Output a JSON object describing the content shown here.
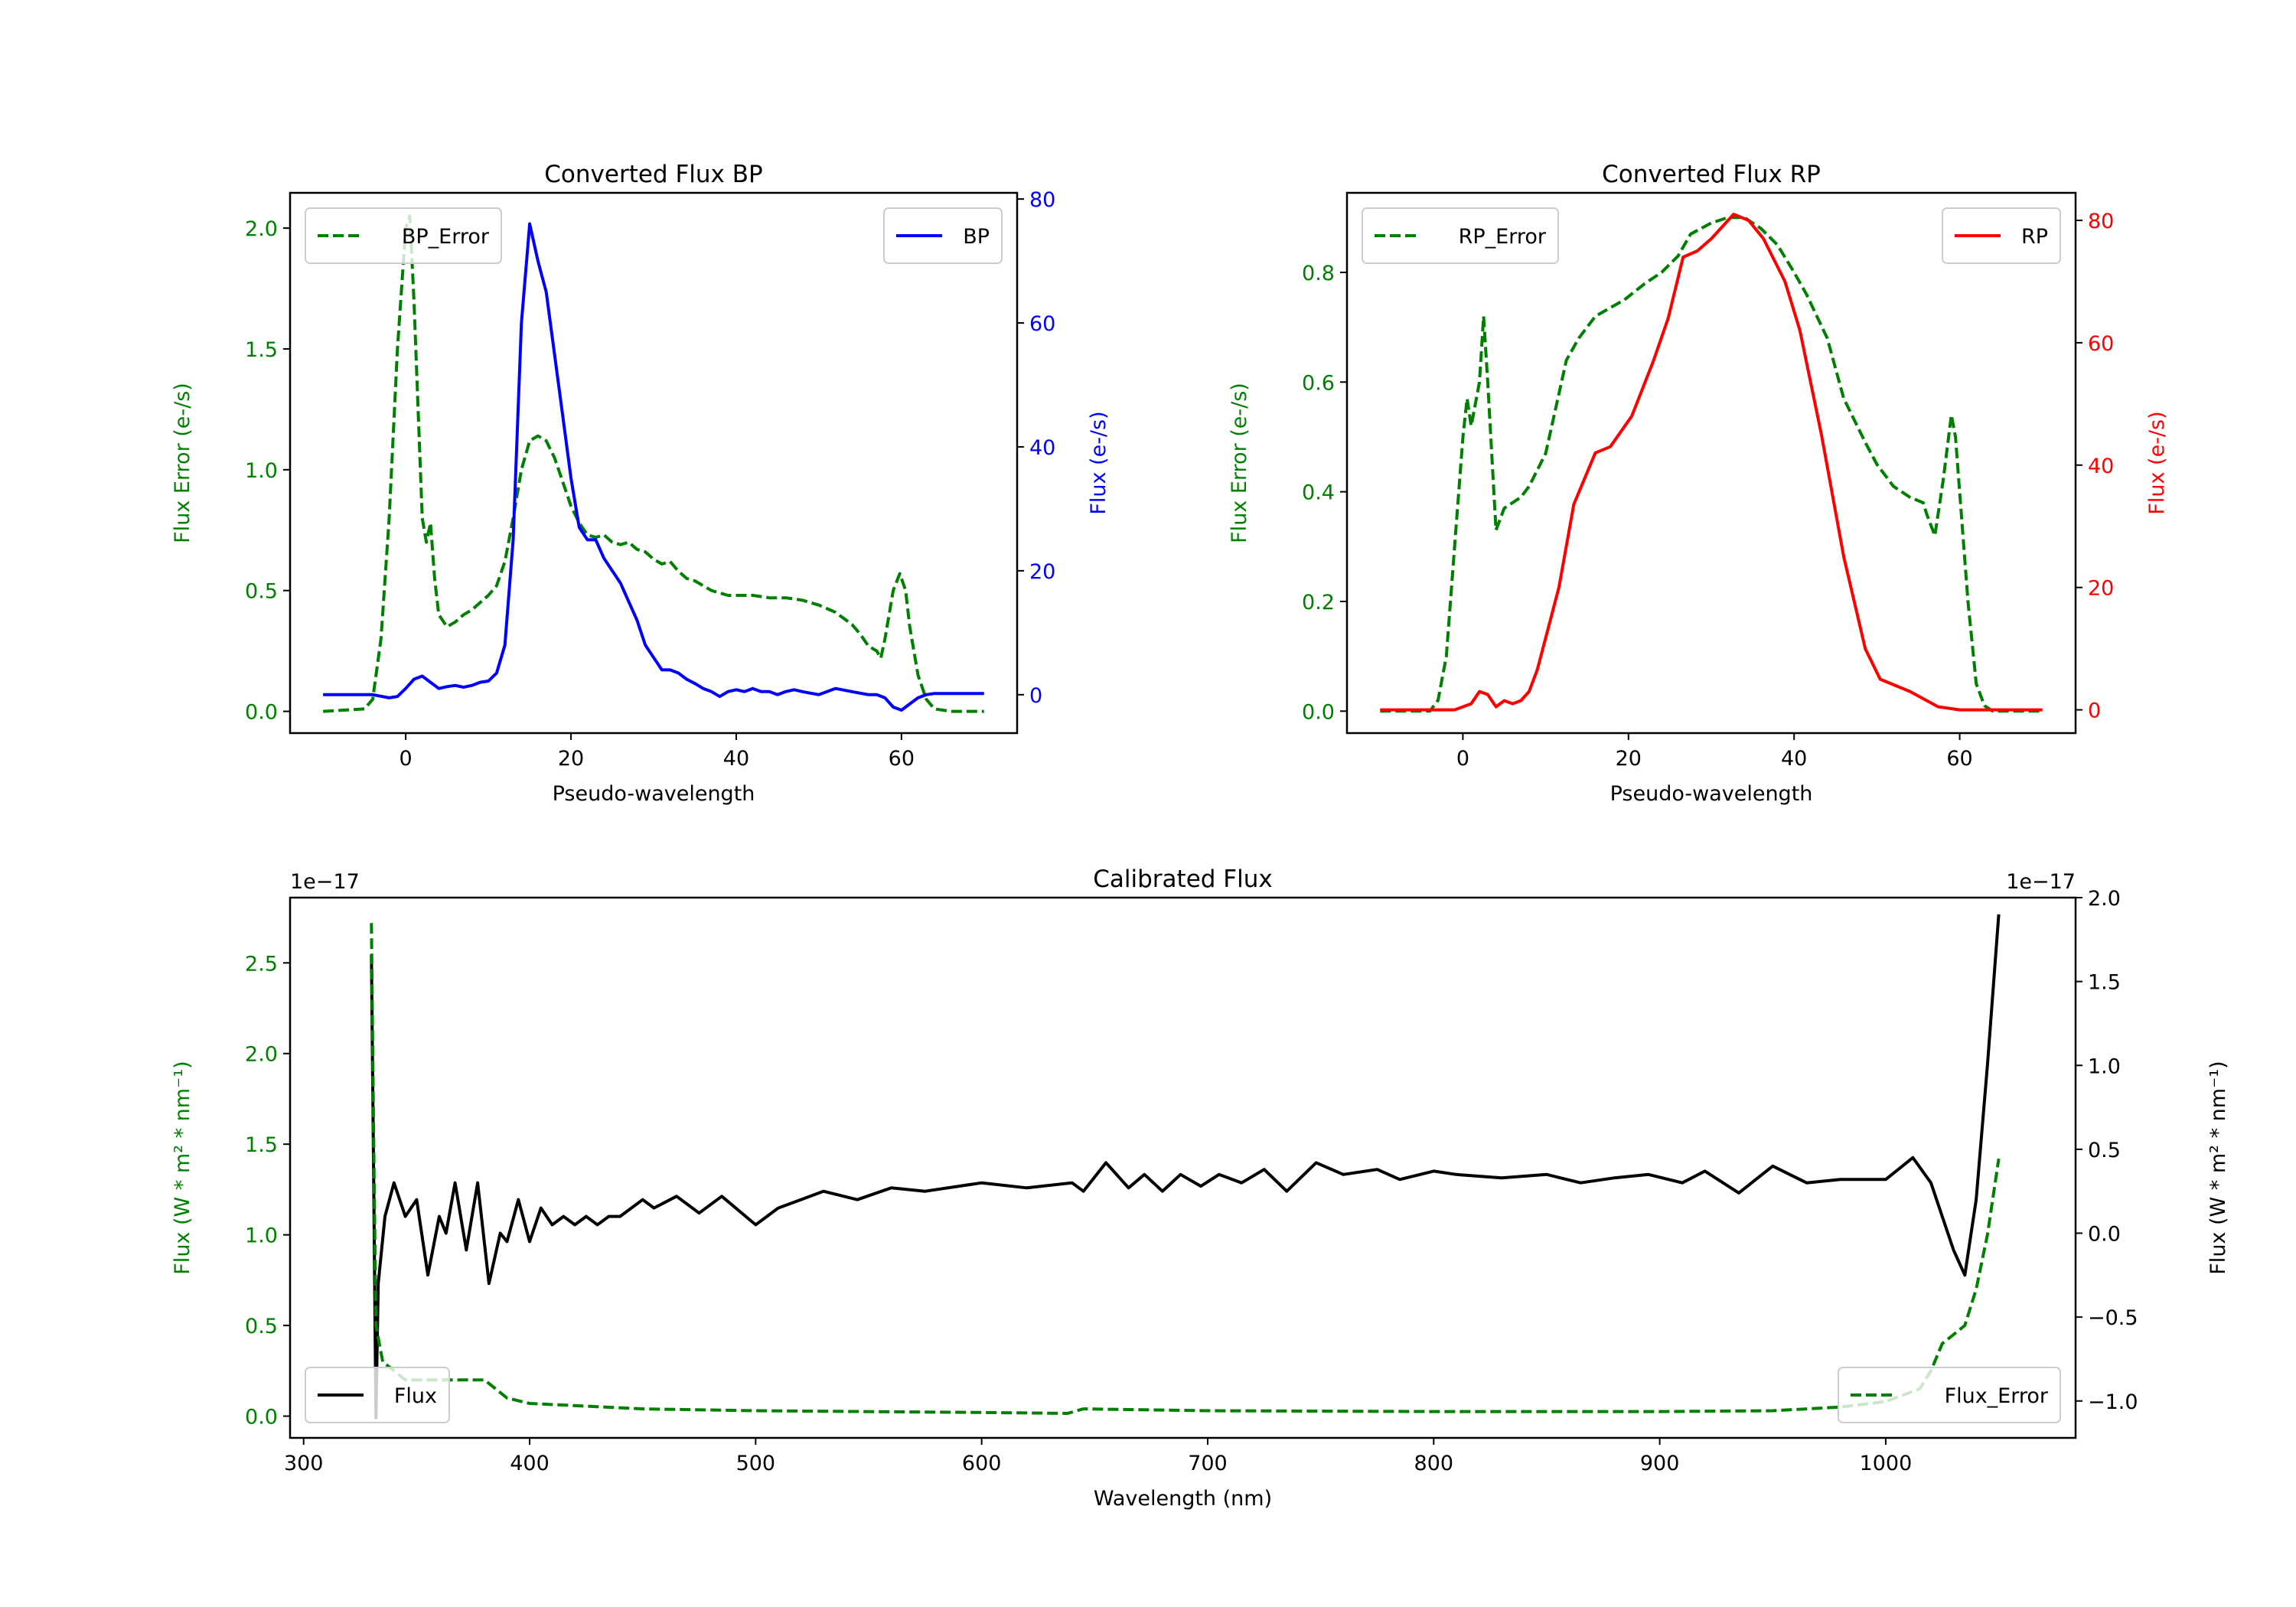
{
  "chart_data": [
    {
      "type": "line",
      "title": "Converted Flux BP",
      "xlabel": "Pseudo-wavelength",
      "ylabel_left": "Flux Error (e-/s)",
      "ylabel_right": "Flux (e-/s)",
      "xlim": [
        -14,
        74
      ],
      "ylim_left": [
        -0.09,
        2.146
      ],
      "ylim_right": [
        -6.2,
        81
      ],
      "xticks": [
        0,
        20,
        40,
        60
      ],
      "yticks_left": [
        0.0,
        0.5,
        1.0,
        1.5,
        2.0
      ],
      "yticks_right": [
        0,
        20,
        40,
        60,
        80
      ],
      "left_color": "#008000",
      "right_color": "#0000ff",
      "series": [
        {
          "name": "BP_Error",
          "axis": "left",
          "style": "dashed",
          "color": "#008000",
          "legend": "upper-left",
          "x": [
            -10,
            -5,
            -4,
            -3,
            -2,
            -1,
            0,
            0.5,
            1,
            2,
            2.5,
            3,
            3.5,
            4,
            5,
            6,
            7,
            8,
            9,
            10,
            11,
            12,
            13,
            14,
            15,
            16,
            17,
            18,
            19,
            20,
            21,
            22,
            23,
            24,
            25,
            26,
            27,
            28,
            29,
            30,
            31,
            32,
            33,
            34,
            35,
            36,
            37,
            38,
            39,
            40,
            42,
            44,
            46,
            48,
            50,
            52,
            54,
            55,
            56,
            57,
            57.5,
            58,
            59,
            59.8,
            60.5,
            61,
            62,
            63,
            64,
            66,
            70
          ],
          "y": [
            0,
            0.01,
            0.05,
            0.3,
            0.8,
            1.5,
            2.0,
            2.05,
            1.7,
            0.8,
            0.7,
            0.78,
            0.55,
            0.4,
            0.35,
            0.37,
            0.4,
            0.42,
            0.45,
            0.48,
            0.52,
            0.62,
            0.8,
            1.0,
            1.12,
            1.14,
            1.12,
            1.05,
            0.95,
            0.85,
            0.78,
            0.73,
            0.72,
            0.73,
            0.7,
            0.69,
            0.7,
            0.67,
            0.66,
            0.63,
            0.61,
            0.62,
            0.58,
            0.55,
            0.54,
            0.52,
            0.5,
            0.49,
            0.48,
            0.48,
            0.48,
            0.47,
            0.47,
            0.46,
            0.44,
            0.41,
            0.36,
            0.32,
            0.27,
            0.25,
            0.22,
            0.3,
            0.5,
            0.57,
            0.5,
            0.35,
            0.15,
            0.05,
            0.01,
            0,
            0
          ]
        },
        {
          "name": "BP",
          "axis": "right",
          "style": "solid",
          "color": "#0000ff",
          "legend": "upper-right",
          "x": [
            -10,
            -4,
            -2,
            -1,
            0,
            1,
            2,
            3,
            4,
            5,
            6,
            7,
            8,
            9,
            10,
            11,
            12,
            13,
            14,
            15,
            16,
            17,
            18,
            19,
            20,
            21,
            22,
            23,
            24,
            25,
            26,
            27,
            28,
            29,
            30,
            31,
            32,
            33,
            34,
            35,
            36,
            37,
            38,
            39,
            40,
            41,
            42,
            43,
            44,
            45,
            46,
            47,
            48,
            50,
            51,
            52,
            54,
            56,
            57,
            58,
            59,
            60,
            61,
            62,
            63,
            64,
            66,
            70
          ],
          "y": [
            0,
            0,
            -0.5,
            -0.3,
            1,
            2.5,
            3,
            2,
            1,
            1.3,
            1.5,
            1.2,
            1.5,
            2,
            2.2,
            3.5,
            8,
            25,
            60,
            76,
            70,
            65,
            55,
            45,
            35,
            27,
            25,
            25,
            22,
            20,
            18,
            15,
            12,
            8,
            6,
            4,
            4,
            3.5,
            2.5,
            1.8,
            1,
            0.5,
            -0.3,
            0.5,
            0.8,
            0.5,
            1,
            0.5,
            0.5,
            0,
            0.5,
            0.8,
            0.5,
            0,
            0.5,
            1,
            0.5,
            0,
            0,
            -0.5,
            -2,
            -2.5,
            -1.5,
            -0.5,
            0,
            0.2,
            0.2,
            0.2
          ]
        }
      ]
    },
    {
      "type": "line",
      "title": "Converted Flux RP",
      "xlabel": "Pseudo-wavelength",
      "ylabel_left": "Flux Error (e-/s)",
      "ylabel_right": "Flux (e-/s)",
      "xlim": [
        -14,
        74
      ],
      "ylim_left": [
        -0.04,
        0.945
      ],
      "ylim_right": [
        -3.8,
        84.5
      ],
      "xticks": [
        0,
        20,
        40,
        60
      ],
      "yticks_left": [
        0.0,
        0.2,
        0.4,
        0.6,
        0.8
      ],
      "yticks_right": [
        0,
        20,
        40,
        60,
        80
      ],
      "left_color": "#008000",
      "right_color": "#ff0000",
      "series": [
        {
          "name": "RP_Error",
          "axis": "left",
          "style": "dashed",
          "color": "#008000",
          "legend": "upper-left",
          "x": [
            -10,
            -4,
            -3,
            -2,
            -1,
            0,
            0.5,
            1,
            2,
            2.5,
            3,
            4,
            5,
            7,
            8,
            10,
            12.5,
            14,
            16,
            19.5,
            22,
            24,
            26,
            27.5,
            30,
            32,
            34,
            36,
            38,
            40,
            41.5,
            44,
            46,
            48.6,
            50,
            52,
            54,
            55.6,
            56,
            57,
            58,
            59,
            59.5,
            60,
            61,
            62,
            63,
            64,
            70
          ],
          "y": [
            0,
            0,
            0.02,
            0.1,
            0.3,
            0.5,
            0.57,
            0.52,
            0.6,
            0.72,
            0.6,
            0.33,
            0.37,
            0.39,
            0.41,
            0.47,
            0.64,
            0.68,
            0.72,
            0.75,
            0.78,
            0.8,
            0.83,
            0.87,
            0.89,
            0.9,
            0.9,
            0.88,
            0.85,
            0.8,
            0.76,
            0.68,
            0.57,
            0.49,
            0.45,
            0.41,
            0.39,
            0.38,
            0.36,
            0.32,
            0.42,
            0.54,
            0.5,
            0.4,
            0.2,
            0.05,
            0.01,
            0,
            0
          ]
        },
        {
          "name": "RP",
          "axis": "right",
          "style": "solid",
          "color": "#ff0000",
          "legend": "upper-right",
          "x": [
            -10,
            -1,
            1,
            2,
            3,
            4,
            5,
            6,
            7,
            8,
            9,
            11.6,
            13.4,
            16,
            17.8,
            20.4,
            23,
            24.8,
            26.6,
            28.3,
            30,
            32.7,
            34.5,
            36.3,
            38.9,
            40.7,
            43.3,
            46,
            48.6,
            50.4,
            54,
            57.4,
            60,
            70
          ],
          "y": [
            0,
            0,
            1,
            3,
            2.5,
            0.5,
            1.5,
            1,
            1.5,
            3,
            6.6,
            20,
            33.6,
            42,
            43,
            48,
            57,
            64,
            74,
            75,
            77,
            81,
            80,
            77,
            70,
            62,
            45,
            25,
            10,
            5,
            3,
            0.5,
            0,
            0
          ]
        }
      ]
    },
    {
      "type": "line",
      "title": "Calibrated Flux",
      "xlabel": "Wavelength (nm)",
      "ylabel_left": "Flux (W * m$^2$ * nm$^{-1}$)",
      "ylabel_left_display": "Flux (W * m² * nm⁻¹)",
      "ylabel_right_display": "Flux (W * m² * nm⁻¹)",
      "offset_left": "1e−17",
      "offset_right": "1e−17",
      "xlim": [
        294,
        1084
      ],
      "ylim_left": [
        -0.12,
        2.86
      ],
      "ylim_right": [
        -1.22,
        2.0
      ],
      "xticks": [
        300,
        400,
        500,
        600,
        700,
        800,
        900,
        1000
      ],
      "yticks_left": [
        0.0,
        0.5,
        1.0,
        1.5,
        2.0,
        2.5
      ],
      "yticks_right": [
        -1.0,
        -0.5,
        0.0,
        0.5,
        1.0,
        1.5,
        2.0
      ],
      "left_color": "#008000",
      "right_color": "#000000",
      "series": [
        {
          "name": "Flux",
          "axis": "right",
          "style": "solid",
          "color": "#000000",
          "legend": "lower-left",
          "x": [
            330,
            331,
            332,
            333,
            336,
            340,
            345,
            350,
            355,
            360,
            363,
            367,
            372,
            377,
            382,
            387,
            390,
            395,
            400,
            405,
            410,
            415,
            420,
            425,
            430,
            435,
            440,
            450,
            455,
            465,
            475,
            485,
            500,
            510,
            520,
            530,
            545,
            560,
            575,
            600,
            620,
            640,
            645,
            655,
            665,
            672,
            680,
            688,
            697,
            705,
            715,
            725,
            735,
            748,
            760,
            775,
            785,
            800,
            810,
            830,
            850,
            865,
            880,
            895,
            910,
            920,
            935,
            950,
            965,
            980,
            1000,
            1012,
            1020,
            1030,
            1035,
            1040,
            1045,
            1050
          ],
          "y": [
            1.66,
            0.3,
            -1.1,
            -0.3,
            0.1,
            0.3,
            0.1,
            0.2,
            -0.25,
            0.1,
            0.0,
            0.3,
            -0.1,
            0.3,
            -0.3,
            0.0,
            -0.05,
            0.2,
            -0.05,
            0.15,
            0.05,
            0.1,
            0.05,
            0.1,
            0.05,
            0.1,
            0.1,
            0.2,
            0.15,
            0.22,
            0.12,
            0.22,
            0.05,
            0.15,
            0.2,
            0.25,
            0.2,
            0.27,
            0.25,
            0.3,
            0.27,
            0.3,
            0.25,
            0.42,
            0.27,
            0.35,
            0.25,
            0.35,
            0.28,
            0.35,
            0.3,
            0.38,
            0.25,
            0.42,
            0.35,
            0.38,
            0.32,
            0.37,
            0.35,
            0.33,
            0.35,
            0.3,
            0.33,
            0.35,
            0.3,
            0.37,
            0.24,
            0.4,
            0.3,
            0.32,
            0.32,
            0.45,
            0.3,
            -0.1,
            -0.25,
            0.2,
            1.0,
            1.9
          ]
        },
        {
          "name": "Flux_Error",
          "axis": "left",
          "style": "dashed",
          "color": "#008000",
          "legend": "lower-right",
          "x": [
            330,
            331,
            332,
            335,
            345,
            380,
            390,
            400,
            450,
            500,
            600,
            638,
            645,
            700,
            800,
            900,
            950,
            980,
            1000,
            1015,
            1020,
            1025,
            1035,
            1040,
            1045,
            1050
          ],
          "y": [
            2.72,
            1.5,
            0.5,
            0.3,
            0.2,
            0.2,
            0.1,
            0.07,
            0.04,
            0.03,
            0.02,
            0.015,
            0.04,
            0.03,
            0.025,
            0.025,
            0.03,
            0.05,
            0.08,
            0.15,
            0.25,
            0.4,
            0.5,
            0.7,
            1.0,
            1.42
          ]
        }
      ]
    }
  ]
}
